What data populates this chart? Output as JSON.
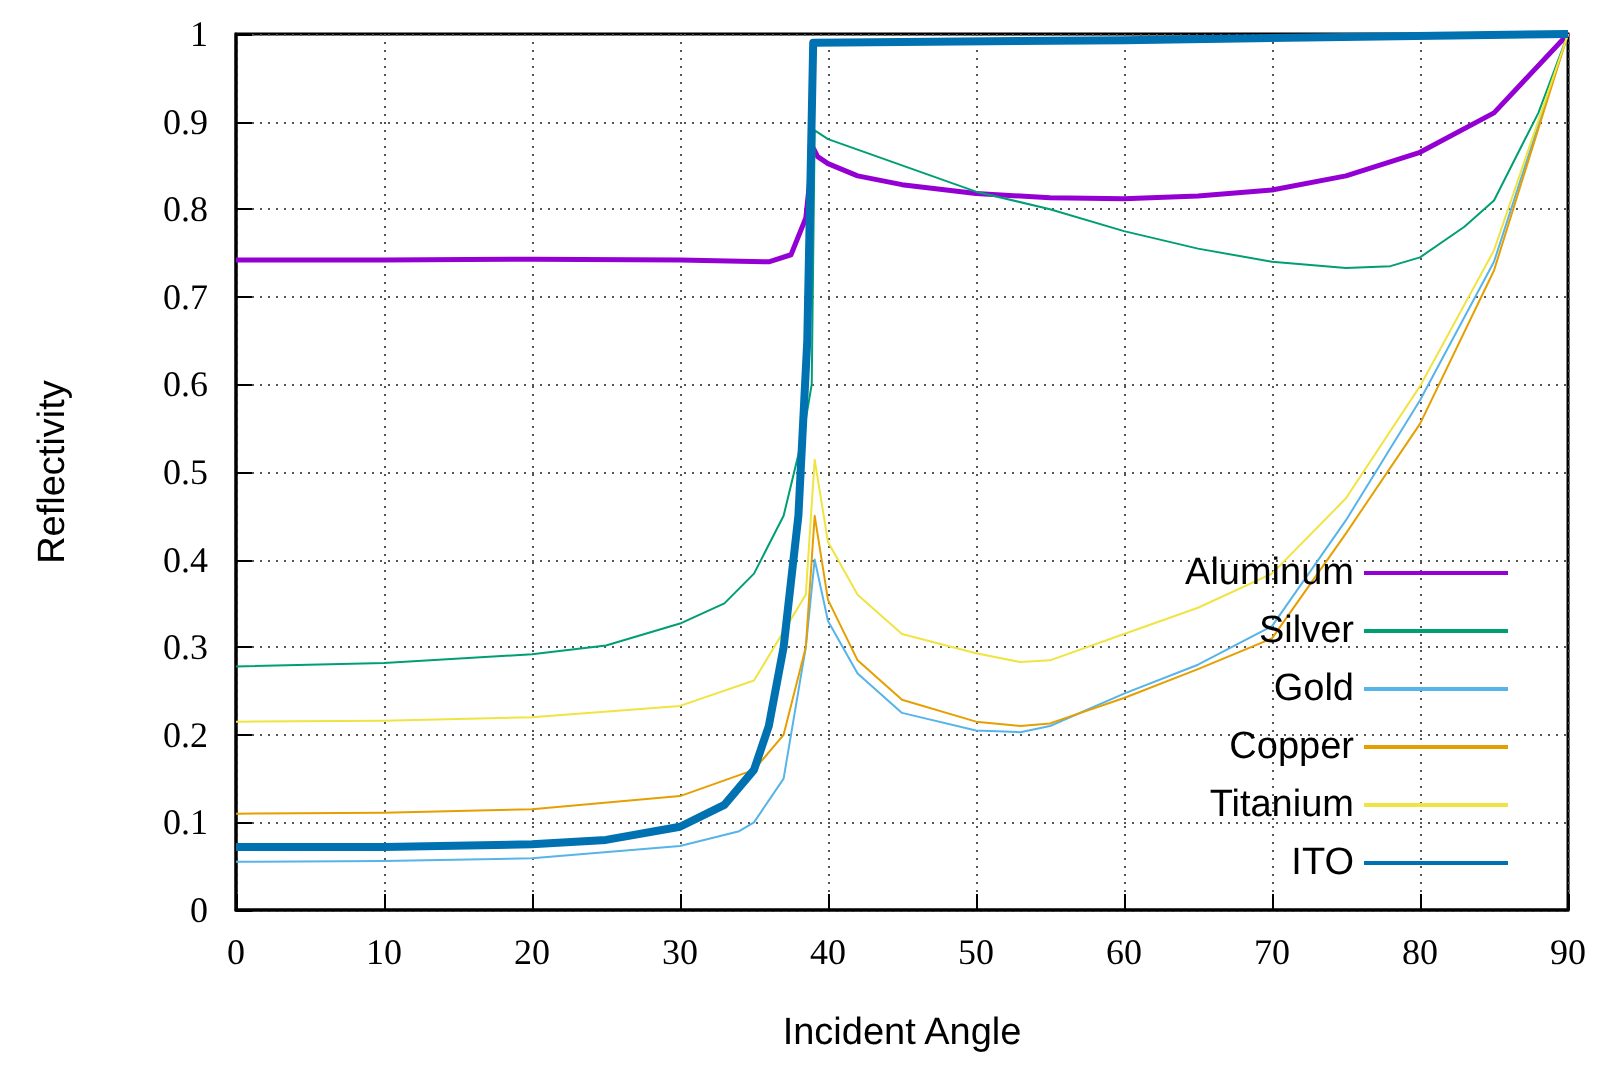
{
  "chart_data": {
    "type": "line",
    "xlabel": "Incident Angle",
    "ylabel": "Reflectivity",
    "xlim": [
      0,
      90
    ],
    "ylim": [
      0,
      1
    ],
    "xticks": [
      0,
      10,
      20,
      30,
      40,
      50,
      60,
      70,
      80,
      90
    ],
    "yticks": [
      0,
      0.1,
      0.2,
      0.3,
      0.4,
      0.5,
      0.6,
      0.7,
      0.8,
      0.9,
      1
    ],
    "grid": true,
    "legend": "bottom right",
    "marker": "none",
    "line_style": "solid",
    "series": [
      {
        "name": "Aluminum",
        "color": "#9400d3",
        "x": [
          0,
          10,
          20,
          30,
          36,
          37.5,
          38.5,
          39,
          39.3,
          40,
          42,
          45,
          50,
          55,
          60,
          65,
          70,
          75,
          80,
          85,
          90
        ],
        "values": [
          0.742,
          0.742,
          0.743,
          0.742,
          0.74,
          0.748,
          0.79,
          0.87,
          0.86,
          0.852,
          0.838,
          0.828,
          0.818,
          0.813,
          0.812,
          0.815,
          0.822,
          0.838,
          0.865,
          0.91,
          1
        ]
      },
      {
        "name": "Silver",
        "color": "#009e73",
        "x": [
          0,
          10,
          20,
          25,
          30,
          33,
          35,
          37,
          38,
          38.5,
          38.9,
          39.1,
          40,
          45,
          50,
          55,
          60,
          65,
          70,
          75,
          78,
          80,
          83,
          85,
          88,
          90
        ],
        "values": [
          0.278,
          0.282,
          0.292,
          0.302,
          0.327,
          0.35,
          0.384,
          0.45,
          0.52,
          0.56,
          0.6,
          0.89,
          0.88,
          0.85,
          0.82,
          0.8,
          0.775,
          0.755,
          0.74,
          0.733,
          0.735,
          0.745,
          0.78,
          0.81,
          0.91,
          1
        ]
      },
      {
        "name": "Gold",
        "color": "#56b4e9",
        "x": [
          0,
          10,
          20,
          30,
          34,
          35,
          37,
          38.5,
          39.1,
          40,
          42,
          45,
          50,
          53,
          55,
          60,
          65,
          70,
          75,
          80,
          85,
          90
        ],
        "values": [
          0.055,
          0.056,
          0.059,
          0.073,
          0.09,
          0.1,
          0.15,
          0.3,
          0.4,
          0.33,
          0.27,
          0.225,
          0.205,
          0.203,
          0.21,
          0.247,
          0.28,
          0.324,
          0.445,
          0.582,
          0.74,
          1
        ]
      },
      {
        "name": "Copper",
        "color": "#e69f00",
        "x": [
          0,
          10,
          20,
          30,
          35,
          37,
          38.5,
          39.1,
          40,
          42,
          45,
          50,
          53,
          55,
          60,
          65,
          70,
          75,
          80,
          85,
          90
        ],
        "values": [
          0.11,
          0.111,
          0.115,
          0.13,
          0.16,
          0.2,
          0.3,
          0.45,
          0.354,
          0.285,
          0.24,
          0.215,
          0.21,
          0.213,
          0.242,
          0.275,
          0.31,
          0.43,
          0.555,
          0.73,
          1
        ]
      },
      {
        "name": "Titanium",
        "color": "#f0e442",
        "x": [
          0,
          10,
          20,
          30,
          35,
          38.5,
          39.1,
          40,
          42,
          45,
          50,
          53,
          55,
          60,
          65,
          70,
          75,
          80,
          85,
          90
        ],
        "values": [
          0.215,
          0.216,
          0.22,
          0.233,
          0.262,
          0.36,
          0.514,
          0.42,
          0.36,
          0.315,
          0.293,
          0.283,
          0.285,
          0.315,
          0.345,
          0.384,
          0.47,
          0.598,
          0.753,
          1
        ]
      },
      {
        "name": "ITO",
        "color": "#0072b2",
        "x": [
          0,
          10,
          20,
          25,
          30,
          33,
          35,
          36,
          37,
          38,
          38.6,
          39,
          39.01,
          60,
          90
        ],
        "values": [
          0.072,
          0.072,
          0.075,
          0.08,
          0.095,
          0.12,
          0.16,
          0.21,
          0.3,
          0.45,
          0.65,
          0.99,
          0.99,
          0.993,
          1
        ]
      }
    ]
  }
}
